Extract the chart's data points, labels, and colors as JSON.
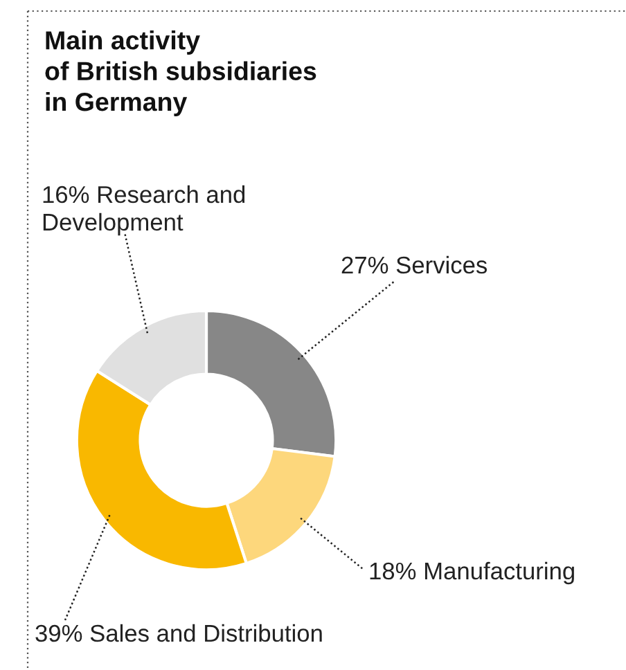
{
  "chart_data": {
    "type": "donut",
    "title": "Main activity\nof British subsidiaries\nin Germany",
    "categories": [
      "Services",
      "Manufacturing",
      "Sales and Distribution",
      "Research and Development"
    ],
    "values": [
      27,
      18,
      39,
      16
    ],
    "value_labels": [
      "27%",
      "18%",
      "39%",
      "16%"
    ],
    "colors": [
      "#878787",
      "#fdd77c",
      "#f9b800",
      "#e0e0e0"
    ],
    "legend": false
  }
}
